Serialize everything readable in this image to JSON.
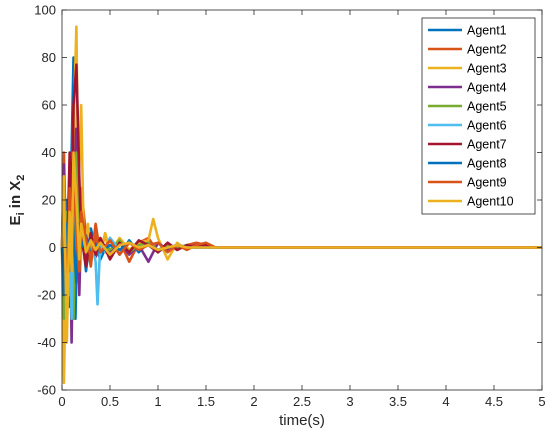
{
  "chart_data": {
    "type": "line",
    "xlabel": "time(s)",
    "ylabel_main": "E",
    "ylabel_sub": "i",
    "ylabel_mid": " in X",
    "ylabel_sub2": "2",
    "xlim": [
      0,
      5
    ],
    "ylim": [
      -60,
      100
    ],
    "xticks": [
      0,
      0.5,
      1,
      1.5,
      2,
      2.5,
      3,
      3.5,
      4,
      4.5,
      5
    ],
    "xtick_labels": [
      "0",
      "0.5",
      "1",
      "1.5",
      "2",
      "2.5",
      "3",
      "3.5",
      "4",
      "4.5",
      "5"
    ],
    "yticks": [
      -60,
      -40,
      -20,
      0,
      20,
      40,
      60,
      80,
      100
    ],
    "ytick_labels": [
      "-60",
      "-40",
      "-20",
      "0",
      "20",
      "40",
      "60",
      "80",
      "100"
    ],
    "grid": false,
    "legend_position": "top-right",
    "series": [
      {
        "name": "Agent1",
        "color": "#0072BD",
        "x": [
          0,
          0.02,
          0.05,
          0.08,
          0.1,
          0.12,
          0.14,
          0.17,
          0.2,
          0.25,
          0.3,
          0.35,
          0.4,
          0.5,
          0.6,
          0.7,
          0.8,
          0.9,
          1.0,
          1.1,
          1.2,
          1.3,
          1.4,
          1.5,
          1.6,
          1.7,
          1.8,
          2.0,
          2.5,
          3.0,
          3.5,
          4.0,
          4.5,
          5.0
        ],
        "y": [
          0,
          -10,
          20,
          -25,
          40,
          80,
          -30,
          30,
          10,
          -10,
          8,
          0,
          -5,
          4,
          -3,
          3,
          -2,
          2,
          -2,
          1,
          -1,
          1,
          0,
          1,
          0,
          0,
          0,
          0,
          0,
          0,
          0,
          0,
          0,
          0
        ]
      },
      {
        "name": "Agent2",
        "color": "#D95319",
        "x": [
          0,
          0.02,
          0.05,
          0.08,
          0.1,
          0.12,
          0.15,
          0.18,
          0.2,
          0.25,
          0.3,
          0.35,
          0.4,
          0.45,
          0.5,
          0.6,
          0.7,
          0.8,
          0.9,
          1.0,
          1.1,
          1.2,
          1.3,
          1.4,
          1.5,
          1.6,
          1.7,
          2.0,
          2.5,
          3.0,
          3.5,
          4.0,
          4.5,
          5.0
        ],
        "y": [
          0,
          40,
          -20,
          30,
          10,
          60,
          20,
          -10,
          25,
          5,
          -8,
          10,
          -3,
          6,
          -4,
          3,
          -6,
          2,
          4,
          -2,
          2,
          -1,
          1,
          2,
          1,
          0,
          0,
          0,
          0,
          0,
          0,
          0,
          0,
          0
        ]
      },
      {
        "name": "Agent3",
        "color": "#EDB120",
        "x": [
          0,
          0.02,
          0.05,
          0.08,
          0.1,
          0.12,
          0.15,
          0.17,
          0.2,
          0.23,
          0.27,
          0.3,
          0.35,
          0.4,
          0.45,
          0.5,
          0.6,
          0.7,
          0.8,
          0.9,
          0.95,
          1.0,
          1.1,
          1.2,
          1.3,
          1.4,
          1.5,
          1.6,
          2.0,
          2.5,
          3.0,
          3.5,
          4.0,
          4.5,
          5.0
        ],
        "y": [
          0,
          -57,
          10,
          -20,
          30,
          50,
          93,
          20,
          60,
          -5,
          10,
          0,
          5,
          -3,
          6,
          -2,
          4,
          -1,
          2,
          3,
          12,
          4,
          -5,
          2,
          -1,
          1,
          0,
          0,
          0,
          0,
          0,
          0,
          0,
          0,
          0
        ]
      },
      {
        "name": "Agent4",
        "color": "#7E2F8E",
        "x": [
          0,
          0.02,
          0.05,
          0.08,
          0.1,
          0.12,
          0.15,
          0.18,
          0.2,
          0.25,
          0.3,
          0.35,
          0.4,
          0.5,
          0.6,
          0.7,
          0.8,
          0.9,
          1.0,
          1.1,
          1.2,
          1.3,
          1.4,
          1.5,
          2.0,
          2.5,
          3.0,
          3.5,
          4.0,
          4.5,
          5.0
        ],
        "y": [
          0,
          35,
          -10,
          20,
          -40,
          15,
          50,
          -20,
          10,
          -5,
          6,
          -4,
          3,
          -2,
          2,
          -3,
          1,
          -6,
          2,
          -1,
          1,
          0,
          1,
          0,
          0,
          0,
          0,
          0,
          0,
          0,
          0
        ]
      },
      {
        "name": "Agent5",
        "color": "#77AC30",
        "x": [
          0,
          0.02,
          0.05,
          0.08,
          0.1,
          0.12,
          0.15,
          0.18,
          0.2,
          0.25,
          0.3,
          0.35,
          0.4,
          0.5,
          0.6,
          0.7,
          0.8,
          0.9,
          1.0,
          1.1,
          1.2,
          1.3,
          1.4,
          1.5,
          2.0,
          2.5,
          3.0,
          3.5,
          4.0,
          4.5,
          5.0
        ],
        "y": [
          0,
          -30,
          15,
          -5,
          20,
          -30,
          40,
          -10,
          5,
          0,
          4,
          -3,
          2,
          -1,
          3,
          -2,
          1,
          2,
          -1,
          1,
          0,
          1,
          0,
          0,
          0,
          0,
          0,
          0,
          0,
          0,
          0
        ]
      },
      {
        "name": "Agent6",
        "color": "#4DBEEE",
        "x": [
          0,
          0.02,
          0.05,
          0.08,
          0.1,
          0.12,
          0.15,
          0.18,
          0.2,
          0.25,
          0.3,
          0.35,
          0.37,
          0.4,
          0.45,
          0.5,
          0.6,
          0.7,
          0.8,
          0.9,
          1.0,
          1.1,
          1.2,
          1.3,
          1.5,
          2.0,
          2.5,
          3.0,
          3.5,
          4.0,
          4.5,
          5.0
        ],
        "y": [
          0,
          10,
          -15,
          5,
          -30,
          20,
          10,
          -5,
          8,
          0,
          5,
          -6,
          -24,
          3,
          -2,
          4,
          -1,
          2,
          0,
          1,
          -1,
          0,
          1,
          0,
          0,
          0,
          0,
          0,
          0,
          0,
          0,
          0
        ]
      },
      {
        "name": "Agent7",
        "color": "#A2142F",
        "x": [
          0,
          0.02,
          0.05,
          0.08,
          0.1,
          0.12,
          0.15,
          0.18,
          0.2,
          0.25,
          0.3,
          0.35,
          0.4,
          0.5,
          0.6,
          0.7,
          0.8,
          0.9,
          1.0,
          1.1,
          1.2,
          1.3,
          1.4,
          1.5,
          1.6,
          2.0,
          2.5,
          3.0,
          3.5,
          4.0,
          4.5,
          5.0
        ],
        "y": [
          0,
          20,
          -10,
          40,
          10,
          60,
          77,
          30,
          5,
          -8,
          6,
          -3,
          4,
          -5,
          2,
          -2,
          3,
          1,
          -2,
          2,
          -1,
          1,
          0,
          1,
          0,
          0,
          0,
          0,
          0,
          0,
          0,
          0
        ]
      },
      {
        "name": "Agent8",
        "color": "#0072BD",
        "x": [
          0,
          0.02,
          0.05,
          0.08,
          0.1,
          0.12,
          0.15,
          0.18,
          0.2,
          0.25,
          0.3,
          0.35,
          0.4,
          0.5,
          0.6,
          0.7,
          0.8,
          0.9,
          1.0,
          1.1,
          1.2,
          1.3,
          1.5,
          2.0,
          2.5,
          3.0,
          3.5,
          4.0,
          4.5,
          5.0
        ],
        "y": [
          0,
          -20,
          10,
          -10,
          20,
          5,
          -15,
          10,
          0,
          5,
          -3,
          2,
          -2,
          1,
          -1,
          2,
          0,
          1,
          -1,
          0,
          1,
          0,
          0,
          0,
          0,
          0,
          0,
          0,
          0,
          0
        ]
      },
      {
        "name": "Agent9",
        "color": "#D95319",
        "x": [
          0,
          0.02,
          0.05,
          0.08,
          0.1,
          0.12,
          0.15,
          0.18,
          0.2,
          0.25,
          0.3,
          0.35,
          0.4,
          0.5,
          0.6,
          0.7,
          0.8,
          0.9,
          1.0,
          1.1,
          1.2,
          1.3,
          1.4,
          1.5,
          1.6,
          2.0,
          2.5,
          3.0,
          3.5,
          4.0,
          4.5,
          5.0
        ],
        "y": [
          0,
          10,
          -20,
          25,
          -5,
          30,
          5,
          -10,
          15,
          3,
          -4,
          5,
          -2,
          3,
          -3,
          2,
          -1,
          1,
          2,
          -2,
          1,
          -1,
          1,
          2,
          0,
          0,
          0,
          0,
          0,
          0,
          0,
          0
        ]
      },
      {
        "name": "Agent10",
        "color": "#EDB120",
        "x": [
          0,
          0.02,
          0.05,
          0.08,
          0.1,
          0.12,
          0.15,
          0.18,
          0.2,
          0.25,
          0.3,
          0.35,
          0.4,
          0.5,
          0.6,
          0.7,
          0.8,
          0.9,
          1.0,
          1.1,
          1.2,
          1.3,
          1.5,
          2.0,
          2.5,
          3.0,
          3.5,
          4.0,
          4.5,
          5.0
        ],
        "y": [
          0,
          30,
          -40,
          15,
          -10,
          40,
          20,
          -5,
          10,
          -2,
          3,
          -1,
          2,
          -3,
          1,
          2,
          0,
          1,
          -1,
          0,
          1,
          0,
          0,
          0,
          0,
          0,
          0,
          0,
          0,
          0
        ]
      }
    ]
  }
}
